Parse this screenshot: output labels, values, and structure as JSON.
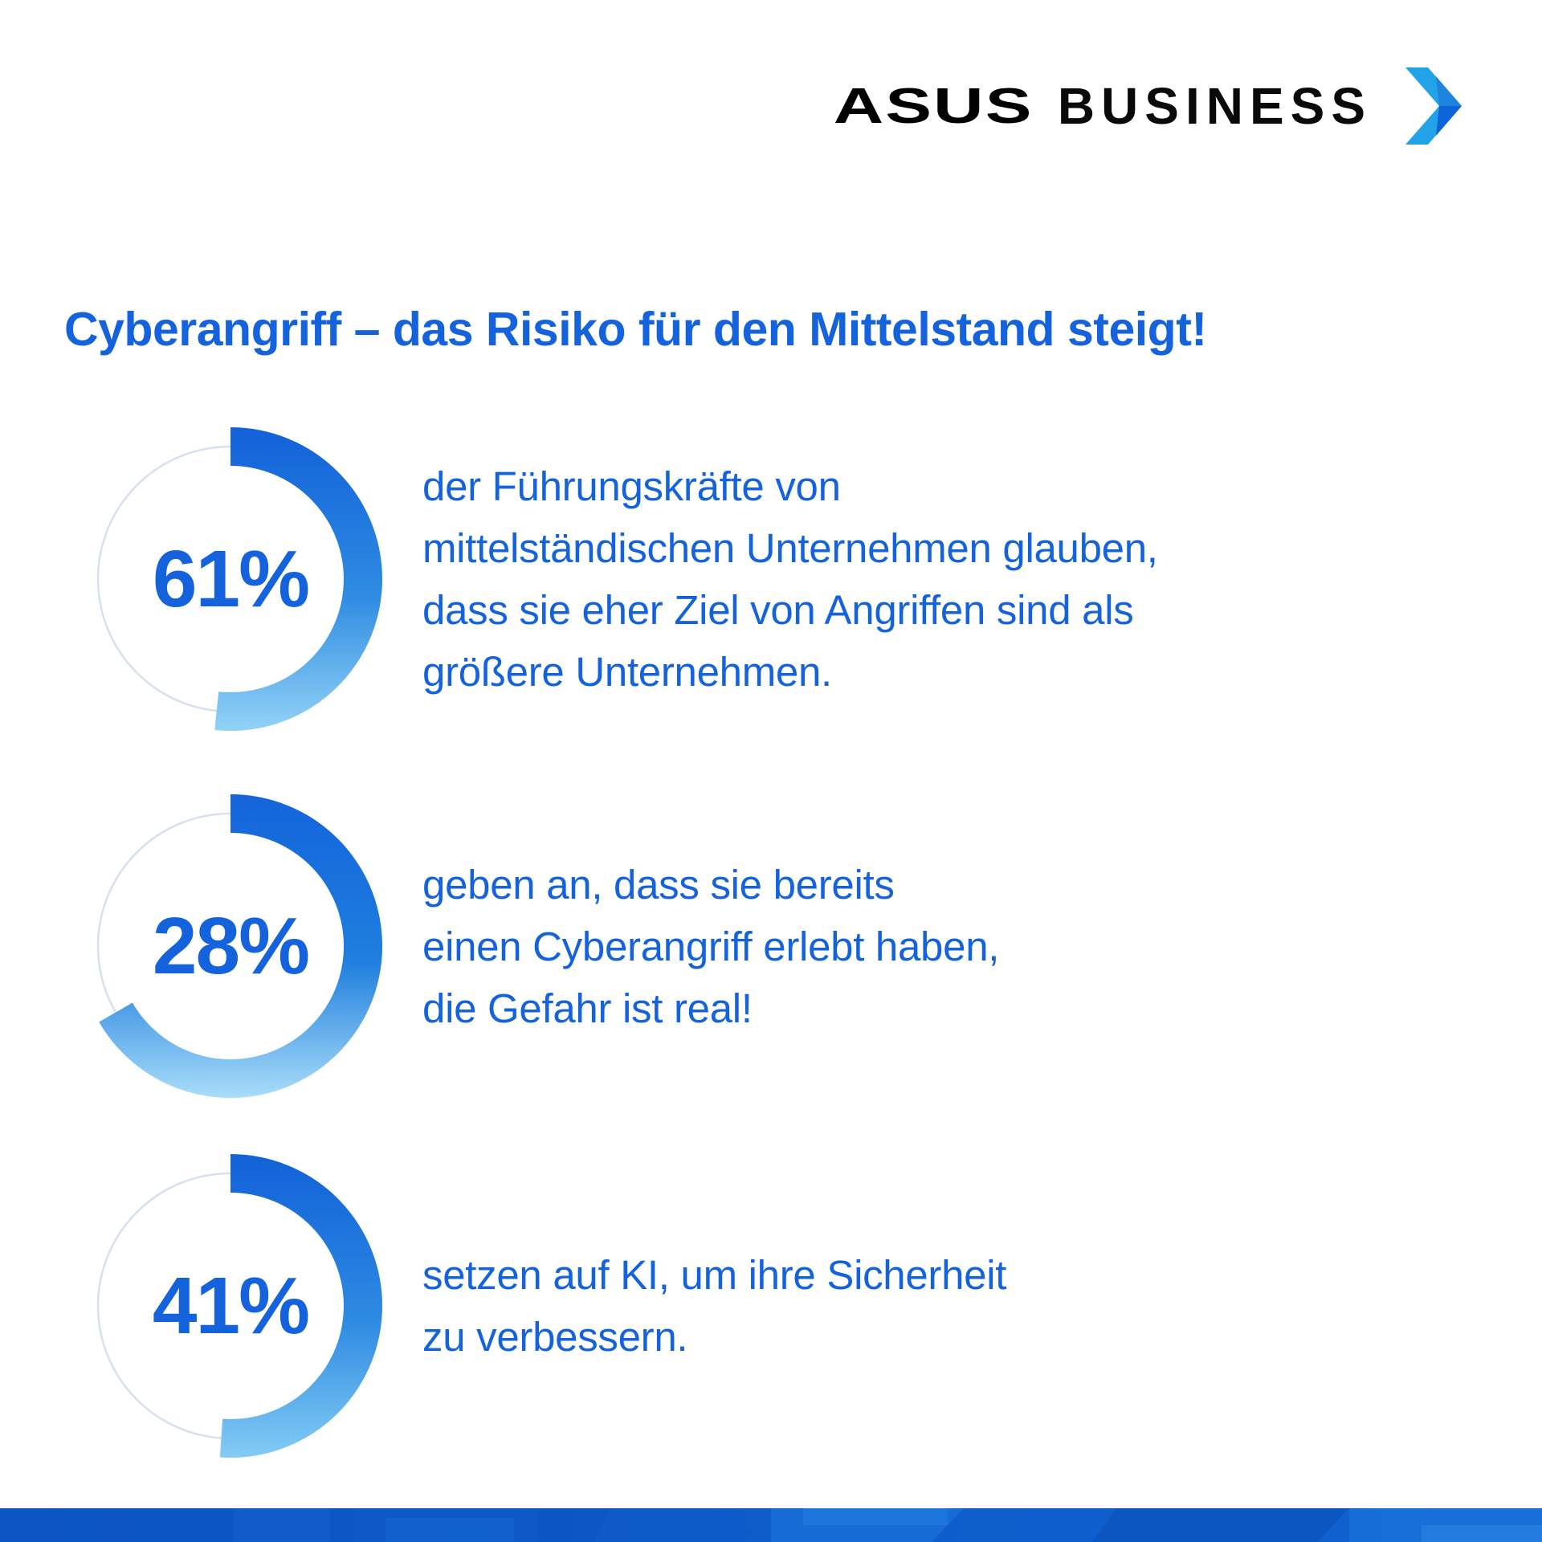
{
  "brand": {
    "asus": "ASUS",
    "business": "BUSINESS",
    "arrow_icon": "chevron-right-arrow-icon",
    "colors": {
      "arrow_band": "#23A3E7",
      "arrow_top": "#1C84DF",
      "arrow_bottom": "#0C63DA"
    }
  },
  "headline": "Cyberangriff – das Risiko für den Mittelstand steigt!",
  "colors": {
    "accent_blue": "#1463DC",
    "track": "#D6E0EF",
    "footer_bar_left": "#0B54C2",
    "footer_bar_right": "#1063D2"
  },
  "chart_data": {
    "type": "donut",
    "unit": "%",
    "legend_position": "none",
    "grid": false,
    "items": [
      {
        "value": 61,
        "label": "61%",
        "sweep_deg": 186,
        "arc_colors": [
          "#1160D8",
          "#2E8BE2",
          "#96D5F7"
        ],
        "lines": [
          "der Führungskräfte von",
          "mittelständischen Unternehmen glauben,",
          "dass sie eher Ziel von Angriffen sind als",
          "größere Unternehmen."
        ]
      },
      {
        "value": 28,
        "label": "28%",
        "sweep_deg": 240,
        "arc_colors": [
          "#1363DA",
          "#1F7FDE",
          "#AEE0FA"
        ],
        "lines": [
          "geben an, dass sie bereits",
          "einen Cyberangriff erlebt haben,",
          "die Gefahr ist real!"
        ]
      },
      {
        "value": 41,
        "label": "41%",
        "sweep_deg": 184,
        "arc_colors": [
          "#1160D8",
          "#2E8BE2",
          "#86CEF5"
        ],
        "lines": [
          "setzen auf KI, um ihre Sicherheit",
          "zu verbessern."
        ]
      }
    ]
  }
}
